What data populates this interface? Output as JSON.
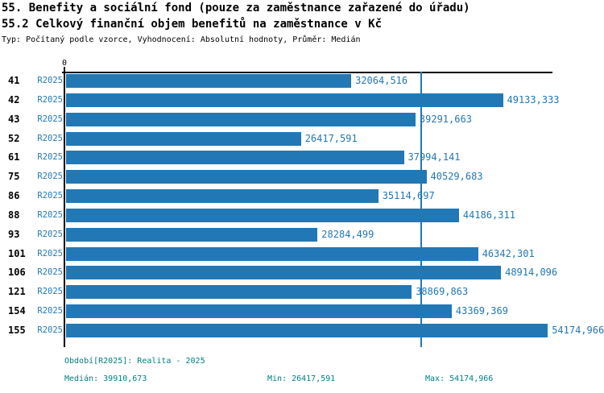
{
  "header": {
    "title_line1": "55. Benefity a sociální fond (pouze za zaměstnance zařazené do úřadu)",
    "title_line2": "55.2 Celkový finanční objem benefitů na zaměstnance v Kč",
    "meta": "Typ: Počítaný podle vzorce, Vyhodnocení: Absolutní hodnoty, Průměr: Medián"
  },
  "chart_data": {
    "type": "bar",
    "orientation": "horizontal",
    "title": "55.2 Celkový finanční objem benefitů na zaměstnance v Kč",
    "series_label": "R2025",
    "categories": [
      "41",
      "42",
      "43",
      "52",
      "61",
      "75",
      "86",
      "88",
      "93",
      "101",
      "106",
      "121",
      "154",
      "155"
    ],
    "values": [
      32064.516,
      49133.333,
      39291.663,
      26417.591,
      37994.141,
      40529.683,
      35114.697,
      44186.311,
      28284.499,
      46342.301,
      48914.096,
      38869.863,
      43369.369,
      54174.966
    ],
    "value_labels": [
      "32064,516",
      "49133,333",
      "39291,663",
      "26417,591",
      "37994,141",
      "40529,683",
      "35114,697",
      "44186,311",
      "28284,499",
      "46342,301",
      "48914,096",
      "38869,863",
      "43369,369",
      "54174,966"
    ],
    "x_axis": {
      "zero_label": "0",
      "xlim": [
        0,
        54700
      ],
      "grid": false
    },
    "median_value": 39910.673,
    "legend_position": "none",
    "colors": {
      "bar": "#2278b5",
      "median_line": "#2278b5",
      "value_label": "#2278b5",
      "series_label": "#2278b5",
      "category_label": "#000000",
      "footer_text": "#008080"
    }
  },
  "footer": {
    "period": "Období[R2025]: Realita - 2025",
    "median": "Medián: 39910,673",
    "min": "Min: 26417,591",
    "max": "Max: 54174,966"
  }
}
